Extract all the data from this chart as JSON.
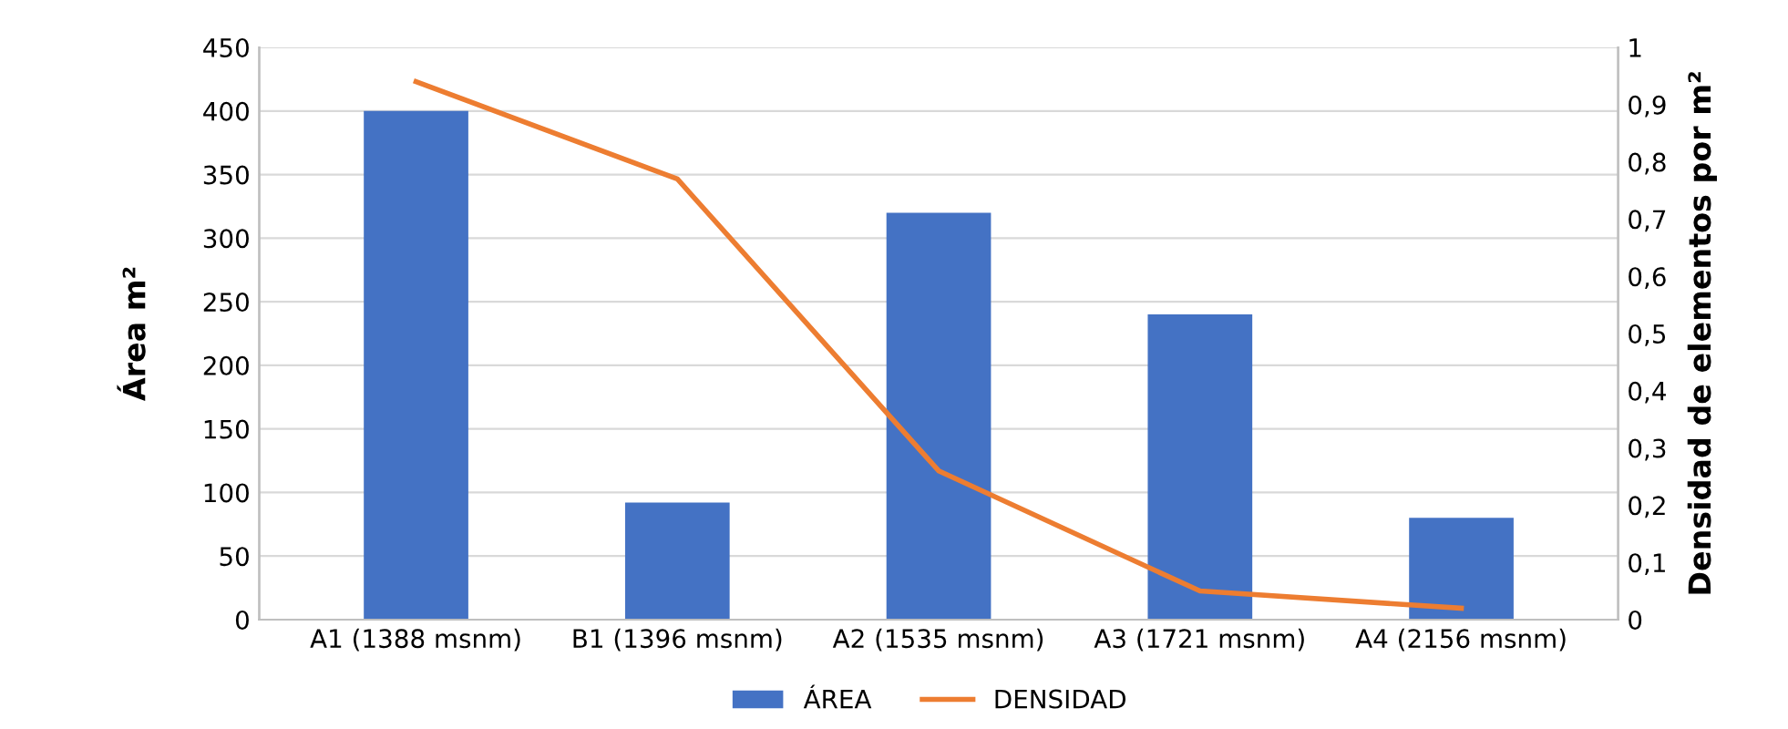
{
  "chart_data": {
    "type": "bar",
    "categories": [
      "A1 (1388 msnm)",
      "B1 (1396 msnm)",
      "A2 (1535 msnm)",
      "A3 (1721 msnm)",
      "A4 (2156 msnm)"
    ],
    "series": [
      {
        "name": "ÁREA",
        "color": "#4472c4",
        "values": [
          400,
          92,
          320,
          240,
          80
        ]
      },
      {
        "name": "DENSIDAD",
        "type": "line",
        "axis": "y2",
        "color": "#ed7d31",
        "values": [
          0.94,
          0.77,
          0.26,
          0.05,
          0.02
        ]
      }
    ],
    "ylabel": "Área m²",
    "y2label": "Densidad de elementos por m²",
    "ylim": [
      0,
      450
    ],
    "yticks": [
      0,
      50,
      100,
      150,
      200,
      250,
      300,
      350,
      400,
      450
    ],
    "y2lim": [
      0,
      1
    ],
    "y2ticks": [
      0,
      {
        "value": 0.1,
        "label": "0,1"
      },
      {
        "value": 0.2,
        "label": "0,2"
      },
      {
        "value": 0.3,
        "label": "0,3"
      },
      {
        "value": 0.4,
        "label": "0,4"
      },
      {
        "value": 0.5,
        "label": "0,5"
      },
      {
        "value": 0.6,
        "label": "0,6"
      },
      {
        "value": 0.7,
        "label": "0,7"
      },
      {
        "value": 0.8,
        "label": "0,8"
      },
      {
        "value": 0.9,
        "label": "0,9"
      },
      1
    ],
    "grid": "y",
    "legend": "bottom",
    "marker": "none",
    "line_style": "solid"
  }
}
